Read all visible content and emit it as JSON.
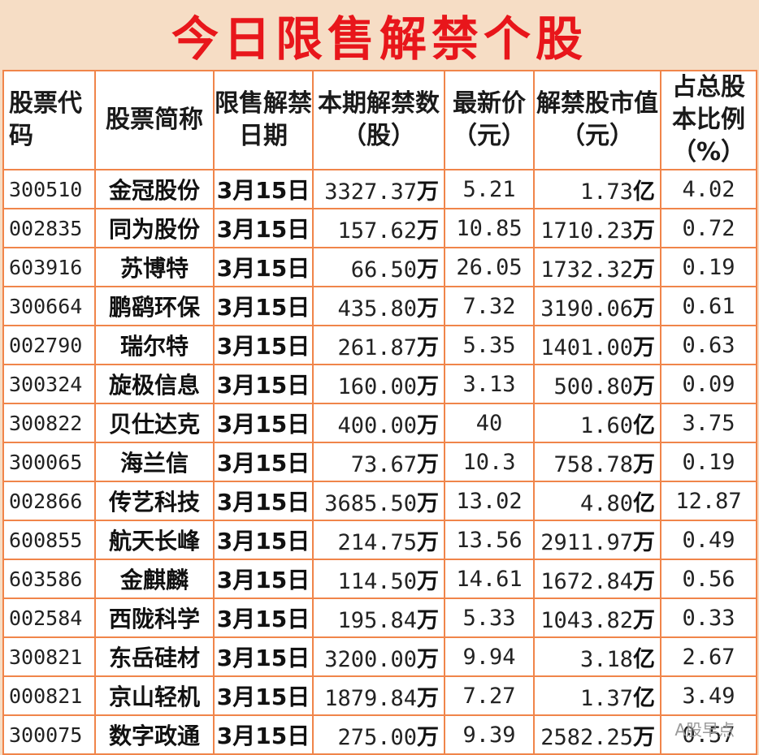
{
  "title": "今日限售解禁个股",
  "headers": {
    "code": "股票代码",
    "name": "股票简称",
    "date": "限售解禁日期",
    "shares": "本期解禁数（股）",
    "price": "最新价（元）",
    "value": "解禁股市值（元）",
    "ratio": "占总股本比例（%）"
  },
  "rows": [
    {
      "code": "300510",
      "name": "金冠股份",
      "date": "3月15日",
      "shares": "3327.37",
      "shares_unit": "万",
      "price": "5.21",
      "value": "1.73",
      "value_unit": "亿",
      "ratio": "4.02"
    },
    {
      "code": "002835",
      "name": "同为股份",
      "date": "3月15日",
      "shares": "157.62",
      "shares_unit": "万",
      "price": "10.85",
      "value": "1710.23",
      "value_unit": "万",
      "ratio": "0.72"
    },
    {
      "code": "603916",
      "name": "苏博特",
      "date": "3月15日",
      "shares": "66.50",
      "shares_unit": "万",
      "price": "26.05",
      "value": "1732.32",
      "value_unit": "万",
      "ratio": "0.19"
    },
    {
      "code": "300664",
      "name": "鹏鹞环保",
      "date": "3月15日",
      "shares": "435.80",
      "shares_unit": "万",
      "price": "7.32",
      "value": "3190.06",
      "value_unit": "万",
      "ratio": "0.61"
    },
    {
      "code": "002790",
      "name": "瑞尔特",
      "date": "3月15日",
      "shares": "261.87",
      "shares_unit": "万",
      "price": "5.35",
      "value": "1401.00",
      "value_unit": "万",
      "ratio": "0.63"
    },
    {
      "code": "300324",
      "name": "旋极信息",
      "date": "3月15日",
      "shares": "160.00",
      "shares_unit": "万",
      "price": "3.13",
      "value": "500.80",
      "value_unit": "万",
      "ratio": "0.09"
    },
    {
      "code": "300822",
      "name": "贝仕达克",
      "date": "3月15日",
      "shares": "400.00",
      "shares_unit": "万",
      "price": "40",
      "value": "1.60",
      "value_unit": "亿",
      "ratio": "3.75"
    },
    {
      "code": "300065",
      "name": "海兰信",
      "date": "3月15日",
      "shares": "73.67",
      "shares_unit": "万",
      "price": "10.3",
      "value": "758.78",
      "value_unit": "万",
      "ratio": "0.19"
    },
    {
      "code": "002866",
      "name": "传艺科技",
      "date": "3月15日",
      "shares": "3685.50",
      "shares_unit": "万",
      "price": "13.02",
      "value": "4.80",
      "value_unit": "亿",
      "ratio": "12.87"
    },
    {
      "code": "600855",
      "name": "航天长峰",
      "date": "3月15日",
      "shares": "214.75",
      "shares_unit": "万",
      "price": "13.56",
      "value": "2911.97",
      "value_unit": "万",
      "ratio": "0.49"
    },
    {
      "code": "603586",
      "name": "金麒麟",
      "date": "3月15日",
      "shares": "114.50",
      "shares_unit": "万",
      "price": "14.61",
      "value": "1672.84",
      "value_unit": "万",
      "ratio": "0.56"
    },
    {
      "code": "002584",
      "name": "西陇科学",
      "date": "3月15日",
      "shares": "195.84",
      "shares_unit": "万",
      "price": "5.33",
      "value": "1043.82",
      "value_unit": "万",
      "ratio": "0.33"
    },
    {
      "code": "300821",
      "name": "东岳硅材",
      "date": "3月15日",
      "shares": "3200.00",
      "shares_unit": "万",
      "price": "9.94",
      "value": "3.18",
      "value_unit": "亿",
      "ratio": "2.67"
    },
    {
      "code": "000821",
      "name": "京山轻机",
      "date": "3月15日",
      "shares": "1879.84",
      "shares_unit": "万",
      "price": "7.27",
      "value": "1.37",
      "value_unit": "亿",
      "ratio": "3.49"
    },
    {
      "code": "300075",
      "name": "数字政通",
      "date": "3月15日",
      "shares": "275.00",
      "shares_unit": "万",
      "price": "9.39",
      "value": "2582.25",
      "value_unit": "万",
      "ratio": "0.57"
    }
  ],
  "watermark": "A股早点"
}
